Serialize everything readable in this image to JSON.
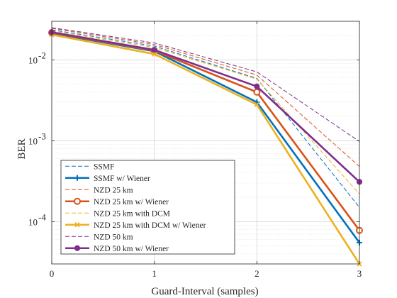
{
  "chart_data": {
    "type": "line",
    "xlabel": "Guard-Interval (samples)",
    "ylabel": "BER",
    "xlim": [
      0,
      3
    ],
    "ylim": [
      3e-05,
      0.03
    ],
    "yscale": "log",
    "grid": true,
    "legend_position": "bottom-left",
    "x_ticks": [
      0,
      1,
      2,
      3
    ],
    "x_tick_labels": [
      "0",
      "1",
      "2",
      "3"
    ],
    "y_ticks": [
      0.0001,
      0.001,
      0.01
    ],
    "y_tick_bases": [
      "10",
      "10",
      "10"
    ],
    "y_tick_exponents": [
      "-4",
      "-3",
      "-2"
    ],
    "x": [
      0,
      1,
      2,
      3
    ],
    "series": [
      {
        "name": "SSMF",
        "values": [
          0.0235,
          0.0148,
          0.0059,
          0.00015
        ],
        "color": "#0072BD",
        "dash": true,
        "marker": "none"
      },
      {
        "name": "SSMF w/ Wiener",
        "values": [
          0.0213,
          0.0128,
          0.003,
          5.5e-05
        ],
        "color": "#0072BD",
        "dash": false,
        "marker": "plus"
      },
      {
        "name": "NZD 25 km",
        "values": [
          0.0245,
          0.0155,
          0.0065,
          0.00048
        ],
        "color": "#D95319",
        "dash": true,
        "marker": "none"
      },
      {
        "name": "NZD 25 km w/ Wiener",
        "values": [
          0.0217,
          0.013,
          0.004,
          7.8e-05
        ],
        "color": "#D95319",
        "dash": false,
        "marker": "circle"
      },
      {
        "name": "NZD 25 km with DCM",
        "values": [
          0.0228,
          0.0142,
          0.0058,
          0.00022
        ],
        "color": "#EDB120",
        "dash": true,
        "marker": "none"
      },
      {
        "name": "NZD 25 km with DCM w/ Wiener",
        "values": [
          0.0205,
          0.0118,
          0.0028,
          3e-05
        ],
        "color": "#EDB120",
        "dash": false,
        "marker": "x"
      },
      {
        "name": "NZD 50 km",
        "values": [
          0.025,
          0.0162,
          0.0071,
          0.00098
        ],
        "color": "#7E2F8E",
        "dash": true,
        "marker": "none"
      },
      {
        "name": "NZD 50 km w/ Wiener",
        "values": [
          0.022,
          0.0133,
          0.0047,
          0.00031
        ],
        "color": "#7E2F8E",
        "dash": false,
        "marker": "dot"
      }
    ]
  }
}
